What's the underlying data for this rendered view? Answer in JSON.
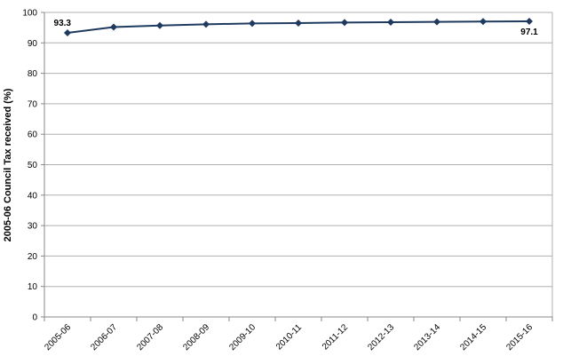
{
  "chart_data": {
    "type": "line",
    "y_label": "2005-06 Council Tax received (%)",
    "categories": [
      "2005-06",
      "2006-07",
      "2007-08",
      "2008-09",
      "2009-10",
      "2010-11",
      "2011-12",
      "2012-13",
      "2013-14",
      "2014-15",
      "2015-16"
    ],
    "values": [
      93.3,
      95.2,
      95.7,
      96.1,
      96.4,
      96.5,
      96.7,
      96.8,
      96.9,
      97.0,
      97.1
    ],
    "value_labels": [
      "93.3",
      null,
      null,
      null,
      null,
      null,
      null,
      null,
      null,
      null,
      "97.1"
    ],
    "color": "#1f3a5f",
    "ylim": [
      0,
      100
    ],
    "yticks": [
      0,
      10,
      20,
      30,
      40,
      50,
      60,
      70,
      80,
      90,
      100
    ],
    "grid": true
  }
}
